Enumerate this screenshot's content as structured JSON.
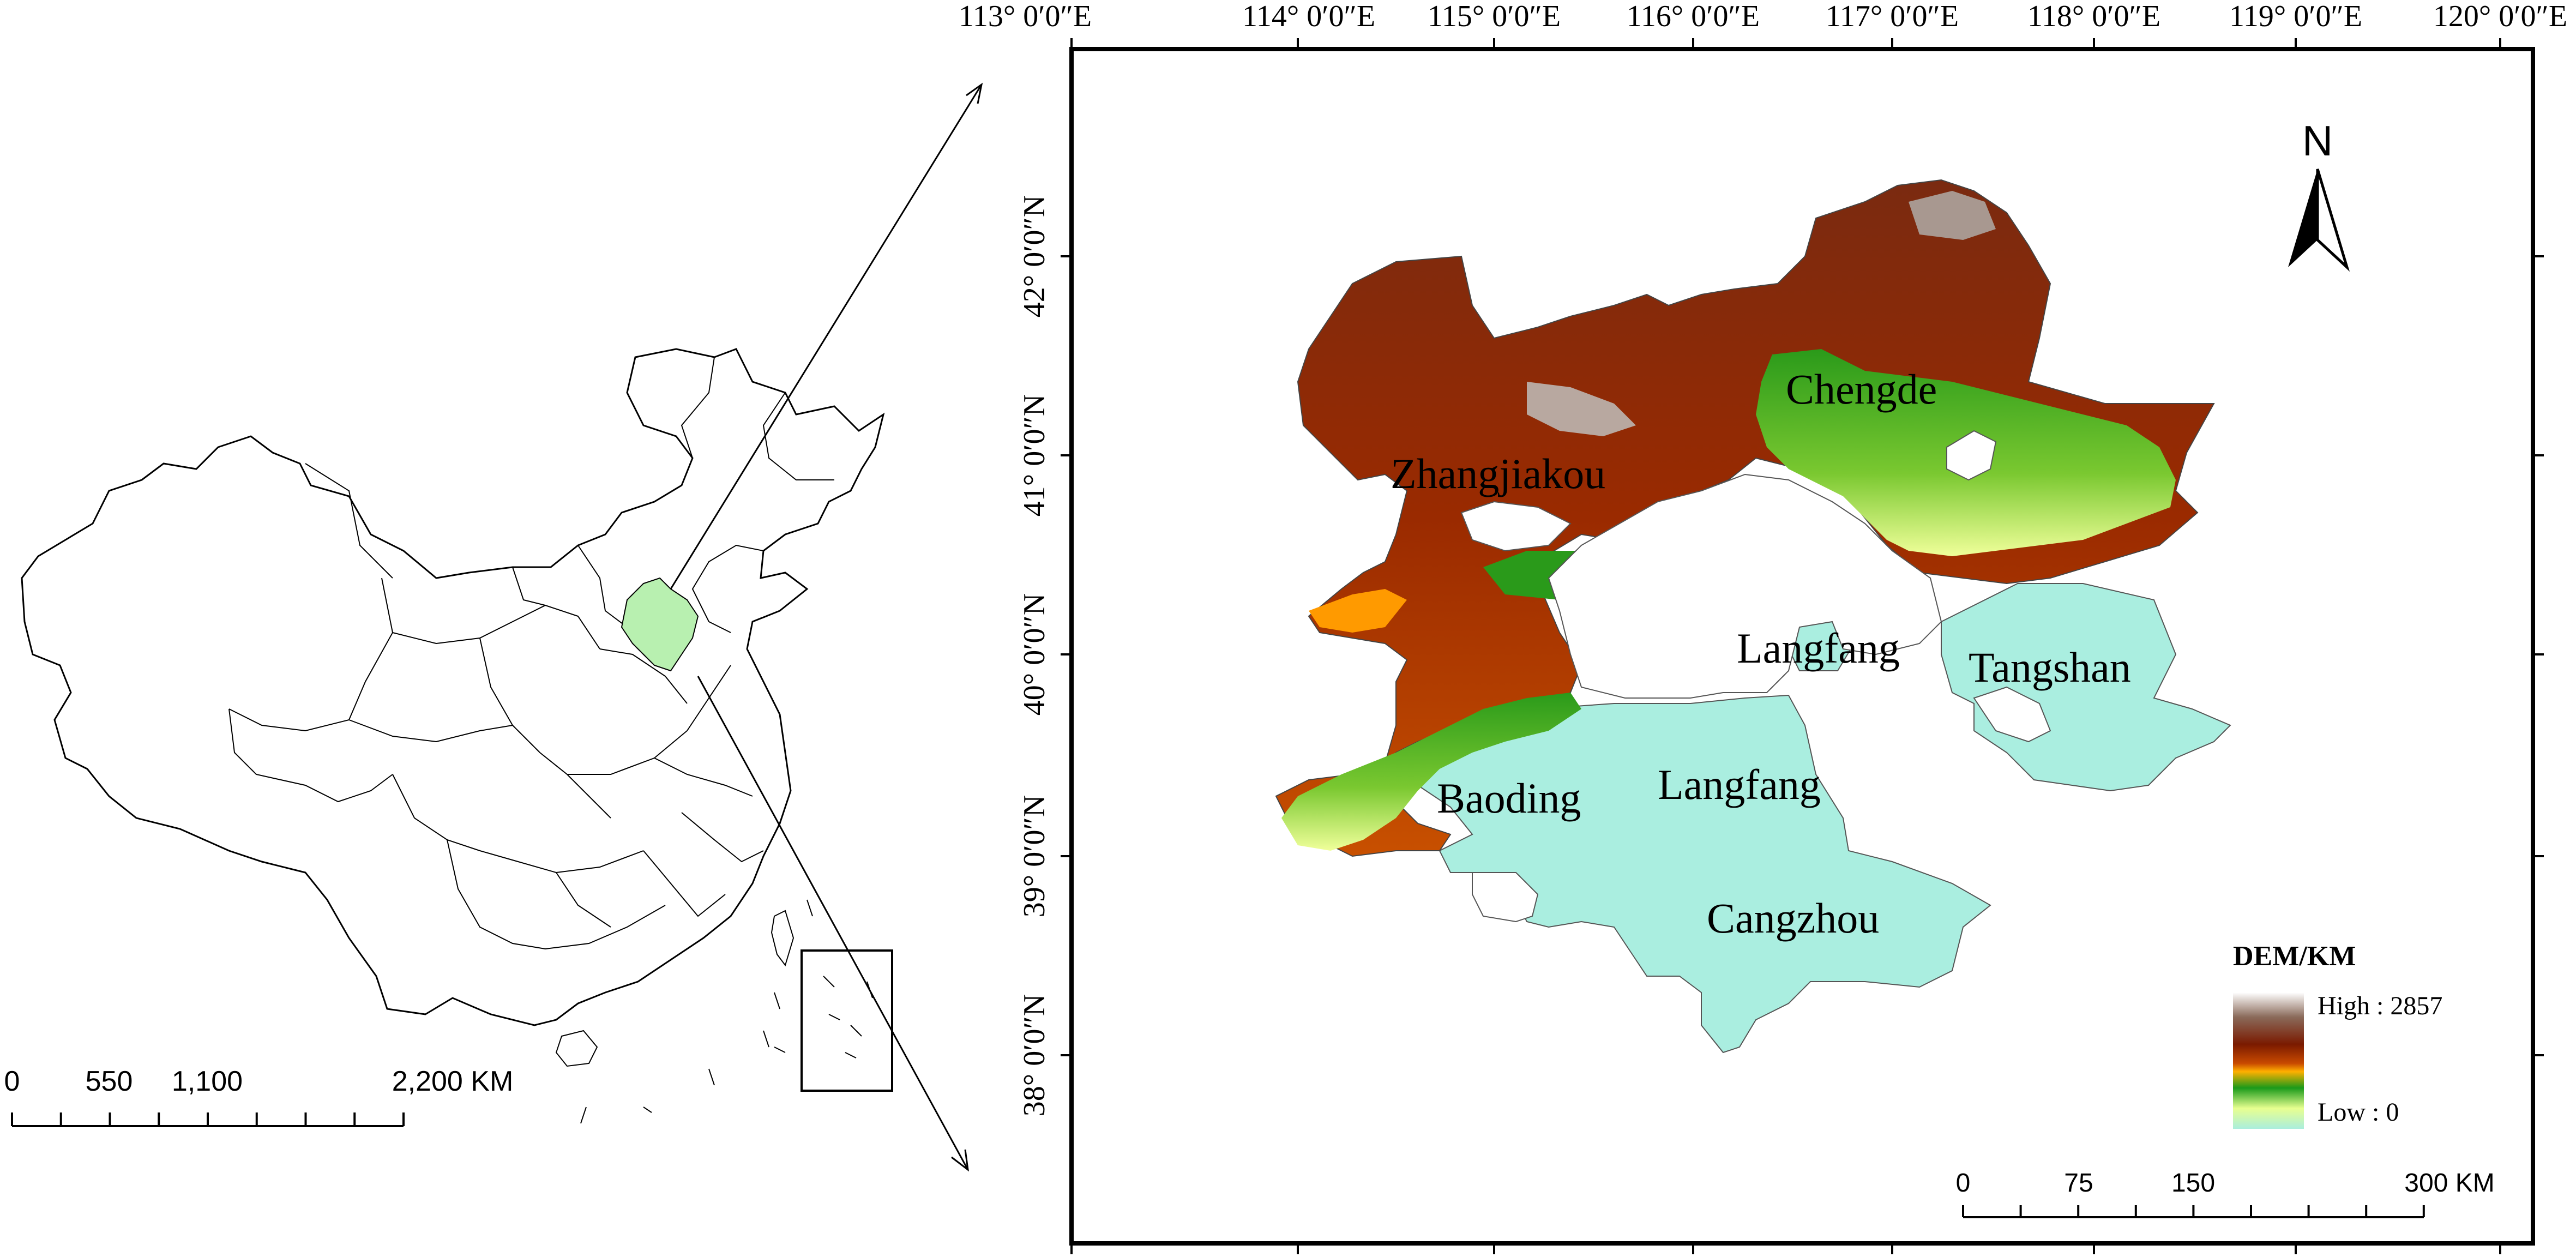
{
  "overview_map": {
    "scale_bar": {
      "ticks": [
        "0",
        "550",
        "1,100",
        "2,200 KM"
      ]
    }
  },
  "dem_map": {
    "longitude_labels": [
      "113° 0′0″E",
      "114° 0′0″E",
      "115° 0′0″E",
      "116° 0′0″E",
      "117° 0′0″E",
      "118° 0′0″E",
      "119° 0′0″E",
      "120° 0′0″E"
    ],
    "latitude_labels": [
      "42° 0′0″N",
      "41° 0′0″N",
      "40° 0′0″N",
      "39° 0′0″N",
      "38° 0′0″N"
    ],
    "cities": [
      "Chengde",
      "Zhangjiakou",
      "Langfang",
      "Tangshan",
      "Baoding",
      "Langfang",
      "Cangzhou"
    ],
    "north_arrow": {
      "label": "N"
    },
    "legend": {
      "title": "DEM/KM",
      "high_label": "High : 2857",
      "low_label": "Low : 0",
      "colors": {
        "high": "#ffffff",
        "brown": "#7a3a1c",
        "dark_red": "#8b1a00",
        "orange": "#ff9a00",
        "green": "#1a9a1a",
        "yellow": "#ffff80",
        "low": "#aaeedd"
      }
    },
    "scale_bar": {
      "ticks": [
        "0",
        "75",
        "150",
        "300 KM"
      ]
    }
  },
  "colors": {
    "highlight_region": "#b8f0b0",
    "lowland": "#aaeee0"
  }
}
